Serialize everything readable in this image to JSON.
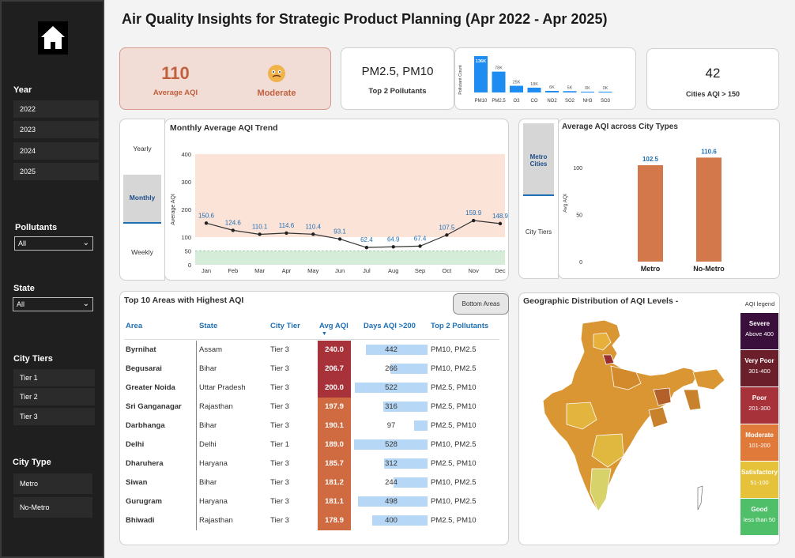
{
  "title": "Air Quality Insights for Strategic Product Planning (Apr 2022 - Apr 2025)",
  "sidebar": {
    "year_heading": "Year",
    "years": [
      "2022",
      "2023",
      "2024",
      "2025"
    ],
    "pollutants_heading": "Pollutants",
    "pollutants_value": "All",
    "state_heading": "State",
    "state_value": "All",
    "tiers_heading": "City Tiers",
    "tiers": [
      "Tier 1",
      "Tier 2",
      "Tier 3"
    ],
    "city_type_heading": "City Type",
    "city_types": [
      "Metro",
      "No-Metro"
    ]
  },
  "kpi": {
    "avg_aqi_value": "110",
    "avg_aqi_label": "Average AQI",
    "category_label": "Moderate",
    "pollutants_value": "PM2.5, PM10",
    "pollutants_label": "Top 2 Pollutants",
    "cities_value": "42",
    "cities_label": "Cities AQI > 150"
  },
  "pollutant_chart": {
    "ylabel": "Pollutant Count",
    "categories": [
      "PM10",
      "PM2.5",
      "O3",
      "CO",
      "NO2",
      "SO2",
      "NH3",
      "SO3"
    ],
    "labels": [
      "136K",
      "78K",
      "25K",
      "18K",
      "6K",
      "5K",
      "0K",
      "0K"
    ],
    "values": [
      136,
      78,
      25,
      18,
      6,
      5,
      0.4,
      0.3
    ],
    "color": "#1e8cf0"
  },
  "trend": {
    "title": "Monthly Average AQI Trend",
    "toggles": [
      "Yearly",
      "Monthly",
      "Weekly"
    ],
    "selected": "Monthly"
  },
  "chart_data": [
    {
      "type": "line",
      "title": "Monthly Average AQI Trend",
      "ylabel": "Average AQI",
      "ylim": [
        0,
        400
      ],
      "yticks": [
        "0",
        "50",
        "100",
        "200",
        "300",
        "400"
      ],
      "categories": [
        "Jan",
        "Feb",
        "Mar",
        "Apr",
        "May",
        "Jun",
        "Jul",
        "Aug",
        "Sep",
        "Oct",
        "Nov",
        "Dec"
      ],
      "values": [
        150.6,
        124.6,
        110.1,
        114.6,
        110.4,
        93.1,
        62.4,
        64.9,
        67.4,
        107.5,
        159.9,
        148.9
      ],
      "labels": [
        "150.6",
        "124.6",
        "110.1",
        "114.6",
        "110.4",
        "93.1",
        "62.4",
        "64.9",
        "67.4",
        "107.5",
        "159.9",
        "148.9"
      ]
    },
    {
      "type": "bar",
      "title": "Average AQI across City Types",
      "ylabel": "Avg AQI",
      "yticks": [
        "0",
        "50",
        "100"
      ],
      "categories": [
        "Metro",
        "No-Metro"
      ],
      "values": [
        102.5,
        110.6
      ],
      "labels": [
        "102.5",
        "110.6"
      ],
      "color": "#d2784a"
    }
  ],
  "city_types_panel": {
    "title": "Average AQI across City Types",
    "toggle_selected": "Metro Cities",
    "toggle_other": "City Tiers"
  },
  "areas_table": {
    "title": "Top 10 Areas with Highest AQI",
    "button": "Bottom Areas",
    "headers": [
      "Area",
      "State",
      "City Tier",
      "Avg AQI",
      "Days AQI >200",
      "Top 2 Pollutants"
    ],
    "rows": [
      {
        "area": "Byrnihat",
        "state": "Assam",
        "tier": "Tier 3",
        "aqi": "240.0",
        "days": "442",
        "days_n": 442,
        "pollutants": "PM10, PM2.5",
        "color": "#a8323a"
      },
      {
        "area": "Begusarai",
        "state": "Bihar",
        "tier": "Tier 3",
        "aqi": "206.7",
        "days": "266",
        "days_n": 266,
        "pollutants": "PM10, PM2.5",
        "color": "#a8323a"
      },
      {
        "area": "Greater Noida",
        "state": "Uttar Pradesh",
        "tier": "Tier 3",
        "aqi": "200.0",
        "days": "522",
        "days_n": 522,
        "pollutants": "PM2.5, PM10",
        "color": "#a8323a"
      },
      {
        "area": "Sri Ganganagar",
        "state": "Rajasthan",
        "tier": "Tier 3",
        "aqi": "197.9",
        "days": "316",
        "days_n": 316,
        "pollutants": "PM2.5, PM10",
        "color": "#d06a40"
      },
      {
        "area": "Darbhanga",
        "state": "Bihar",
        "tier": "Tier 3",
        "aqi": "190.1",
        "days": "97",
        "days_n": 97,
        "pollutants": "PM2.5, PM10",
        "color": "#d06a40"
      },
      {
        "area": "Delhi",
        "state": "Delhi",
        "tier": "Tier 1",
        "aqi": "189.0",
        "days": "528",
        "days_n": 528,
        "pollutants": "PM10, PM2.5",
        "color": "#d06a40"
      },
      {
        "area": "Dharuhera",
        "state": "Haryana",
        "tier": "Tier 3",
        "aqi": "185.7",
        "days": "312",
        "days_n": 312,
        "pollutants": "PM2.5, PM10",
        "color": "#d06a40"
      },
      {
        "area": "Siwan",
        "state": "Bihar",
        "tier": "Tier 3",
        "aqi": "181.2",
        "days": "244",
        "days_n": 244,
        "pollutants": "PM10, PM2.5",
        "color": "#d06a40"
      },
      {
        "area": "Gurugram",
        "state": "Haryana",
        "tier": "Tier 3",
        "aqi": "181.1",
        "days": "498",
        "days_n": 498,
        "pollutants": "PM10, PM2.5",
        "color": "#d06a40"
      },
      {
        "area": "Bhiwadi",
        "state": "Rajasthan",
        "tier": "Tier 3",
        "aqi": "178.9",
        "days": "400",
        "days_n": 400,
        "pollutants": "PM2.5, PM10",
        "color": "#d06a40"
      }
    ]
  },
  "map": {
    "title": "Geographic Distribution of AQI Levels -",
    "legend_title": "AQI legend",
    "legend": [
      {
        "label": "Severe",
        "range": "Above 400",
        "color": "#3b0f3b"
      },
      {
        "label": "Very Poor",
        "range": "301-400",
        "color": "#6b1f2a"
      },
      {
        "label": "Poor",
        "range": "201-300",
        "color": "#a8323a"
      },
      {
        "label": "Moderate",
        "range": "101-200",
        "color": "#e07a3a"
      },
      {
        "label": "Satisfactory",
        "range": "51-100",
        "color": "#e6c23a"
      },
      {
        "label": "Good",
        "range": "less than 50",
        "color": "#4fbf6a"
      }
    ]
  }
}
